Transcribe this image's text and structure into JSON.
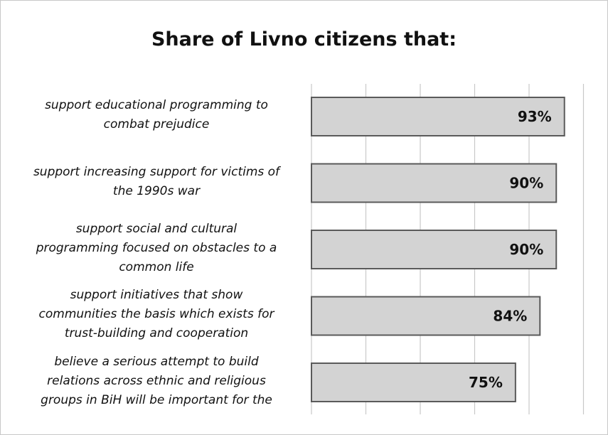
{
  "chart_data": {
    "type": "bar",
    "orientation": "horizontal",
    "title": "Share of Livno citizens that:",
    "xlabel": "",
    "ylabel": "",
    "xlim": [
      0,
      100
    ],
    "grid": true,
    "categories": [
      [
        "support educational programming to",
        "combat prejudice"
      ],
      [
        "support increasing support for victims of",
        "the 1990s war"
      ],
      [
        "support social and cultural",
        "programming focused on obstacles to a",
        "common life"
      ],
      [
        "support initiatives that show",
        "communities the basis which exists for",
        "trust-building and cooperation"
      ],
      [
        "believe a serious attempt to build",
        "relations across ethnic and religious",
        "groups in BiH will be important for the"
      ]
    ],
    "values": [
      93,
      90,
      90,
      84,
      75
    ],
    "data_labels": [
      "93%",
      "90%",
      "90%",
      "84%",
      "75%"
    ],
    "bar_color": "#d3d3d3",
    "bar_edge_color": "#5a5a5a",
    "grid_color": "#c8c8c8"
  }
}
